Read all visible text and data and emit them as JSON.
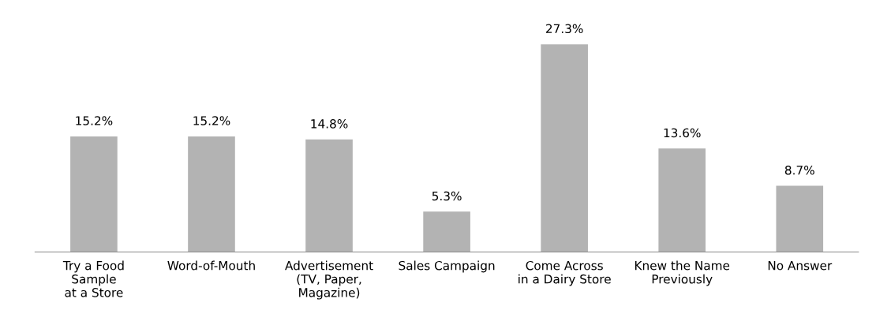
{
  "chart_data": {
    "type": "bar",
    "categories": [
      "Try a Food\nSample\nat a Store",
      "Word-of-Mouth",
      "Advertisement\n(TV, Paper,\nMagazine)",
      "Sales Campaign",
      "Come Across\nin a Dairy Store",
      "Knew the Name\nPreviously",
      "No Answer"
    ],
    "values": [
      15.2,
      15.2,
      14.8,
      5.3,
      27.3,
      13.6,
      8.7
    ],
    "value_labels": [
      "15.2%",
      "15.2%",
      "14.8%",
      "5.3%",
      "27.3%",
      "13.6%",
      "8.7%"
    ],
    "color": "#b3b3b3",
    "tick_labels": "x",
    "grid": false,
    "legend": false
  }
}
